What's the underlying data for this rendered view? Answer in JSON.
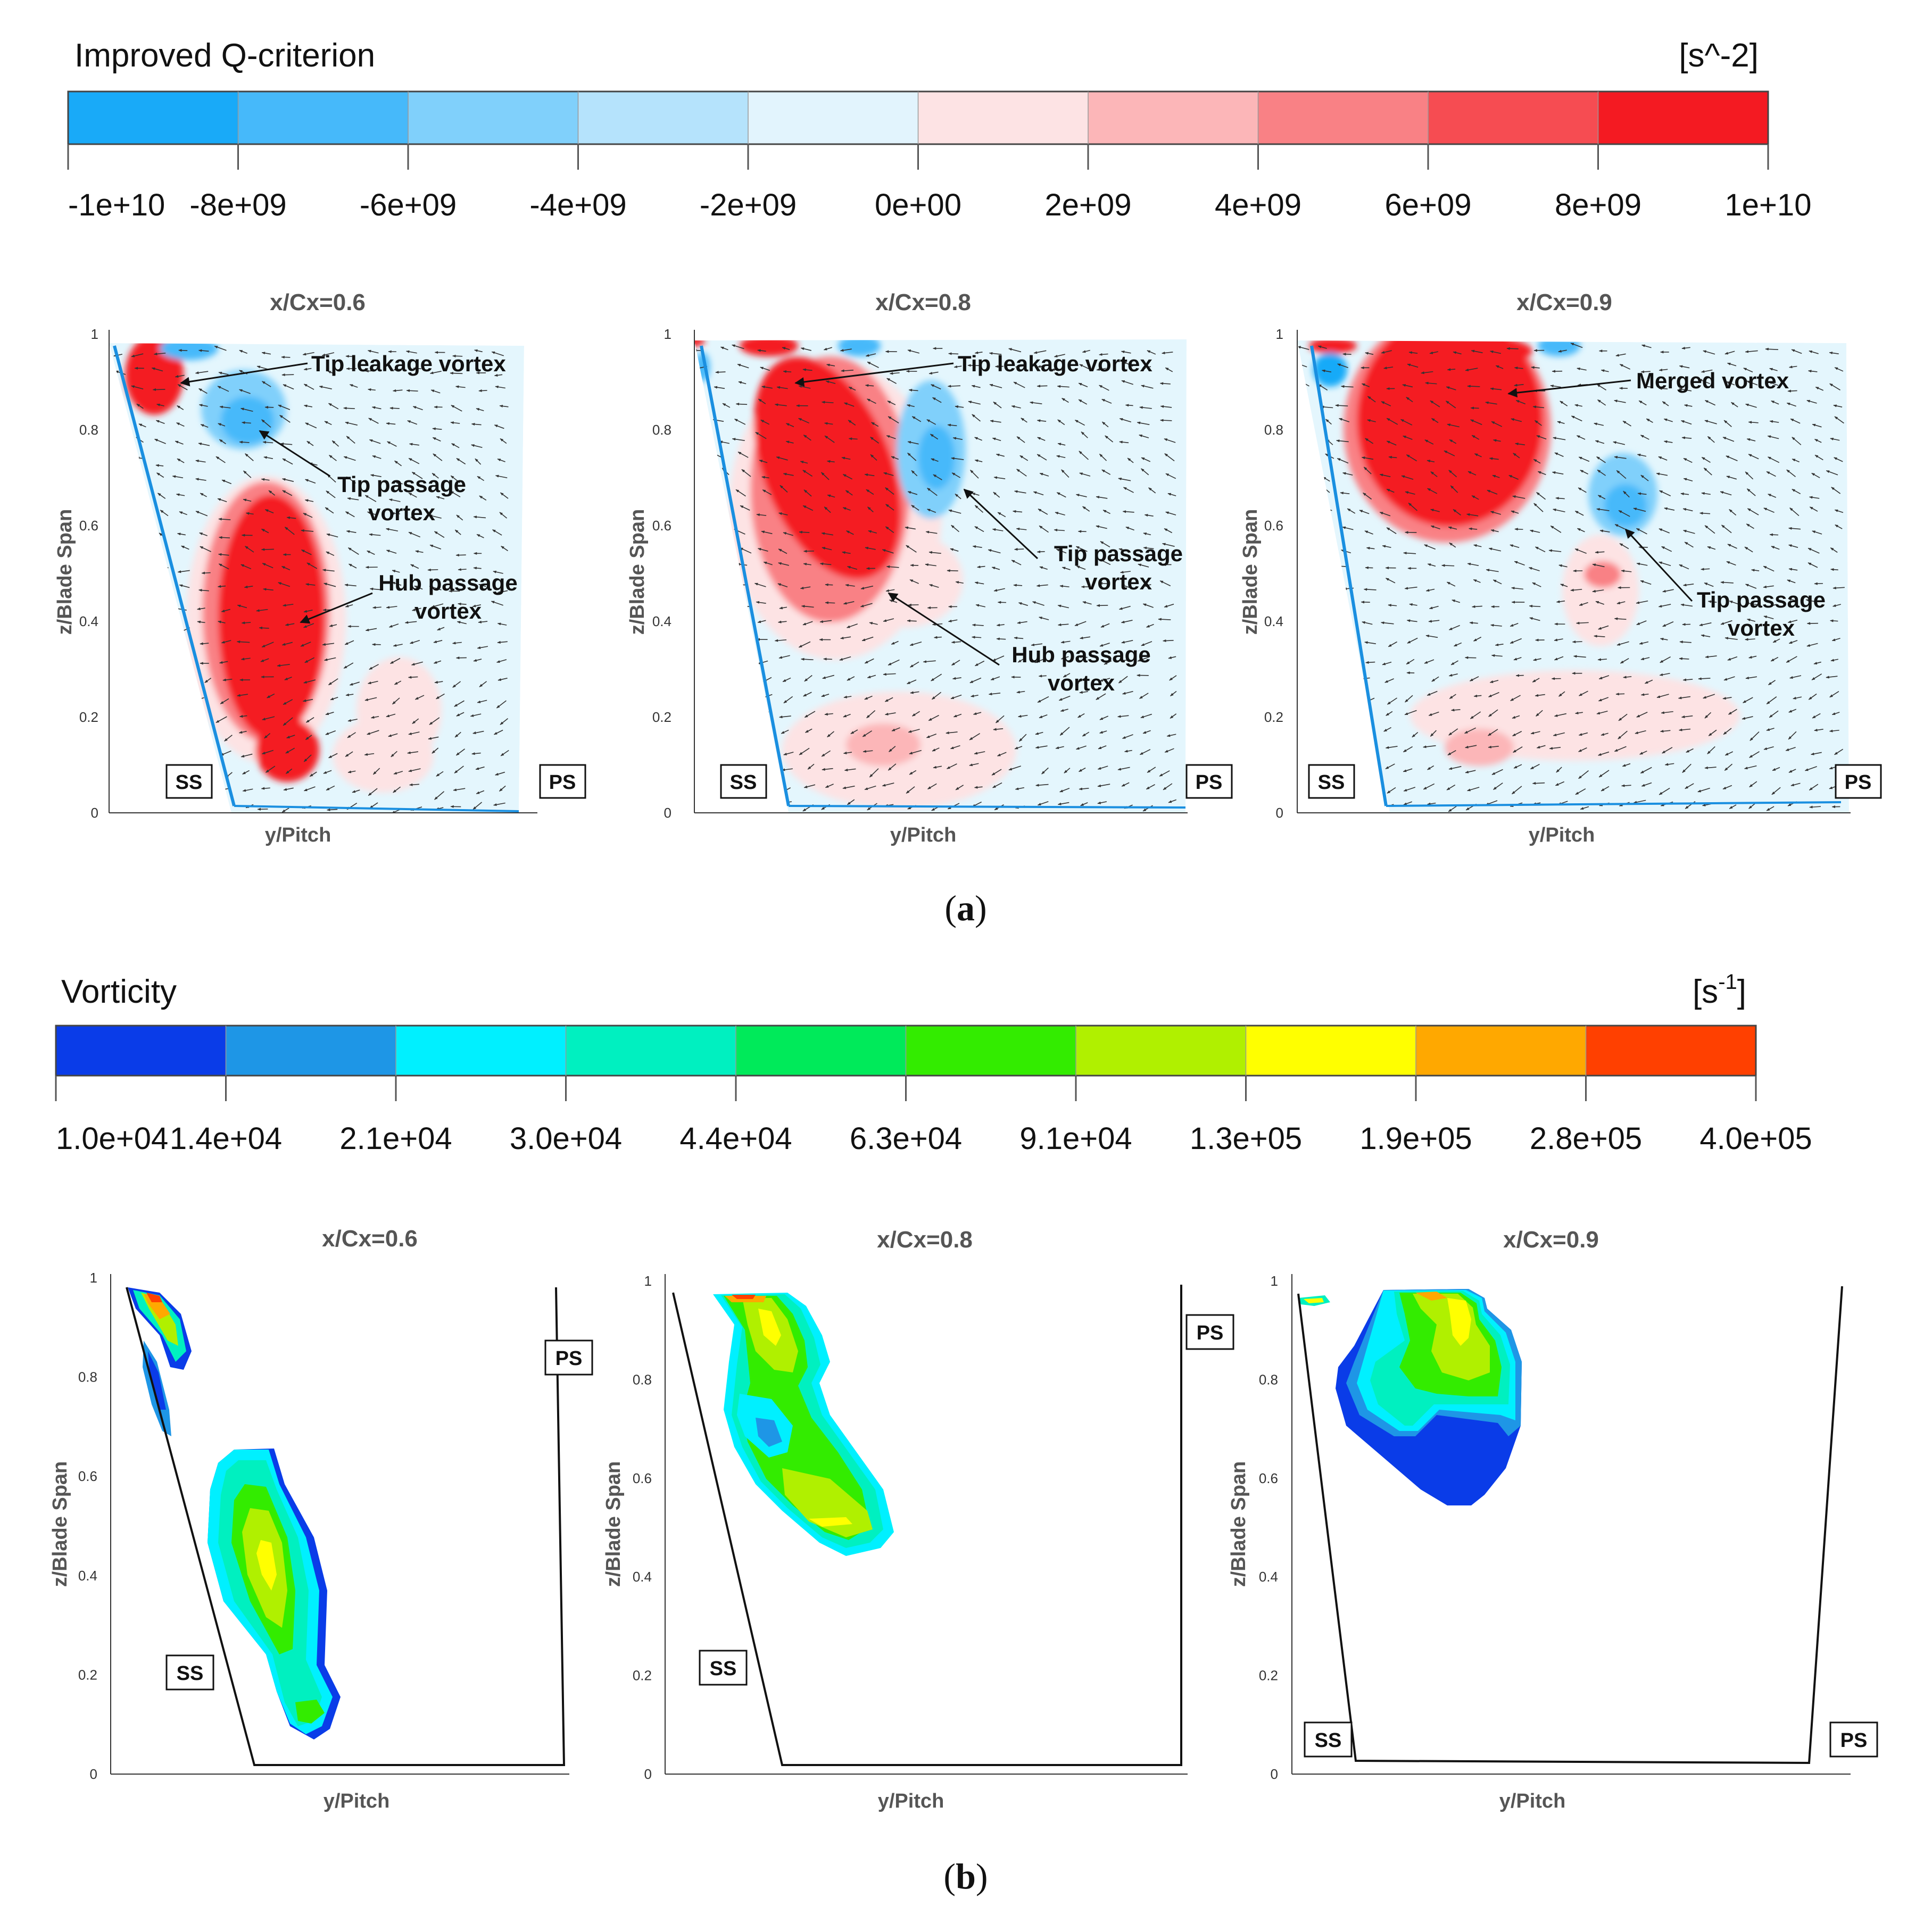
{
  "colors": {
    "q_levels": [
      "#19aaf8",
      "#46b9fa",
      "#80d0fb",
      "#b5e3fc",
      "#e2f4fd",
      "#fde3e4",
      "#fcb6b8",
      "#f98185",
      "#f64c52",
      "#f41a22"
    ],
    "vort_levels": [
      "#0a3ce8",
      "#1e96e6",
      "#00f0ff",
      "#00f0c0",
      "#00ea5a",
      "#33ec00",
      "#b0f000",
      "#ffff00",
      "#ffa800",
      "#ff4000"
    ],
    "arrow": "#333333",
    "passage_fill": "#e4f6fd",
    "blade_line": "#1a8fe0"
  },
  "panel_a": {
    "colorbar": {
      "title": "Improved Q-criterion",
      "unit": "[s^-2]",
      "ticks": [
        "-1e+10",
        "-8e+09",
        "-6e+09",
        "-4e+09",
        "-2e+09",
        "0e+00",
        "2e+09",
        "4e+09",
        "6e+09",
        "8e+09",
        "1e+10"
      ]
    },
    "plots": [
      {
        "title": "x/Cx=0.6",
        "xlabel": "y/Pitch",
        "ylabel": "z/Blade Span",
        "yticks": [
          "1",
          "0.8",
          "0.6",
          "0.4",
          "0.2",
          "0"
        ],
        "annotations": [
          "Tip leakage vortex",
          "Tip passage",
          "vortex",
          "Hub passage",
          "vortex"
        ],
        "ss": "SS",
        "ps": "PS"
      },
      {
        "title": "x/Cx=0.8",
        "xlabel": "y/Pitch",
        "ylabel": "z/Blade Span",
        "yticks": [
          "1",
          "0.8",
          "0.6",
          "0.4",
          "0.2",
          "0"
        ],
        "annotations": [
          "Tip leakage vortex",
          "Tip passage",
          "vortex",
          "Hub passage",
          "vortex"
        ],
        "ss": "SS",
        "ps": "PS"
      },
      {
        "title": "x/Cx=0.9",
        "xlabel": "y/Pitch",
        "ylabel": "z/Blade Span",
        "yticks": [
          "1",
          "0.8",
          "0.6",
          "0.4",
          "0.2",
          "0"
        ],
        "annotations": [
          "Merged vortex",
          "Tip passage",
          "vortex"
        ],
        "ss": "SS",
        "ps": "PS"
      }
    ],
    "caption": "a"
  },
  "panel_b": {
    "colorbar": {
      "title": "Vorticity",
      "unit_base": "[s",
      "unit_exp": "-1",
      "unit_close": "]",
      "ticks": [
        "1.0e+04",
        "1.4e+04",
        "2.1e+04",
        "3.0e+04",
        "4.4e+04",
        "6.3e+04",
        "9.1e+04",
        "1.3e+05",
        "1.9e+05",
        "2.8e+05",
        "4.0e+05"
      ]
    },
    "plots": [
      {
        "title": "x/Cx=0.6",
        "xlabel": "y/Pitch",
        "ylabel": "z/Blade Span",
        "yticks": [
          "1",
          "0.8",
          "0.6",
          "0.4",
          "0.2",
          "0"
        ],
        "ss": "SS",
        "ps": "PS"
      },
      {
        "title": "x/Cx=0.8",
        "xlabel": "y/Pitch",
        "ylabel": "z/Blade Span",
        "yticks": [
          "1",
          "0.8",
          "0.6",
          "0.4",
          "0.2",
          "0"
        ],
        "ss": "SS",
        "ps": "PS"
      },
      {
        "title": "x/Cx=0.9",
        "xlabel": "y/Pitch",
        "ylabel": "z/Blade Span",
        "yticks": [
          "1",
          "0.8",
          "0.6",
          "0.4",
          "0.2",
          "0"
        ],
        "ss": "SS",
        "ps": "PS"
      }
    ],
    "caption": "b"
  }
}
